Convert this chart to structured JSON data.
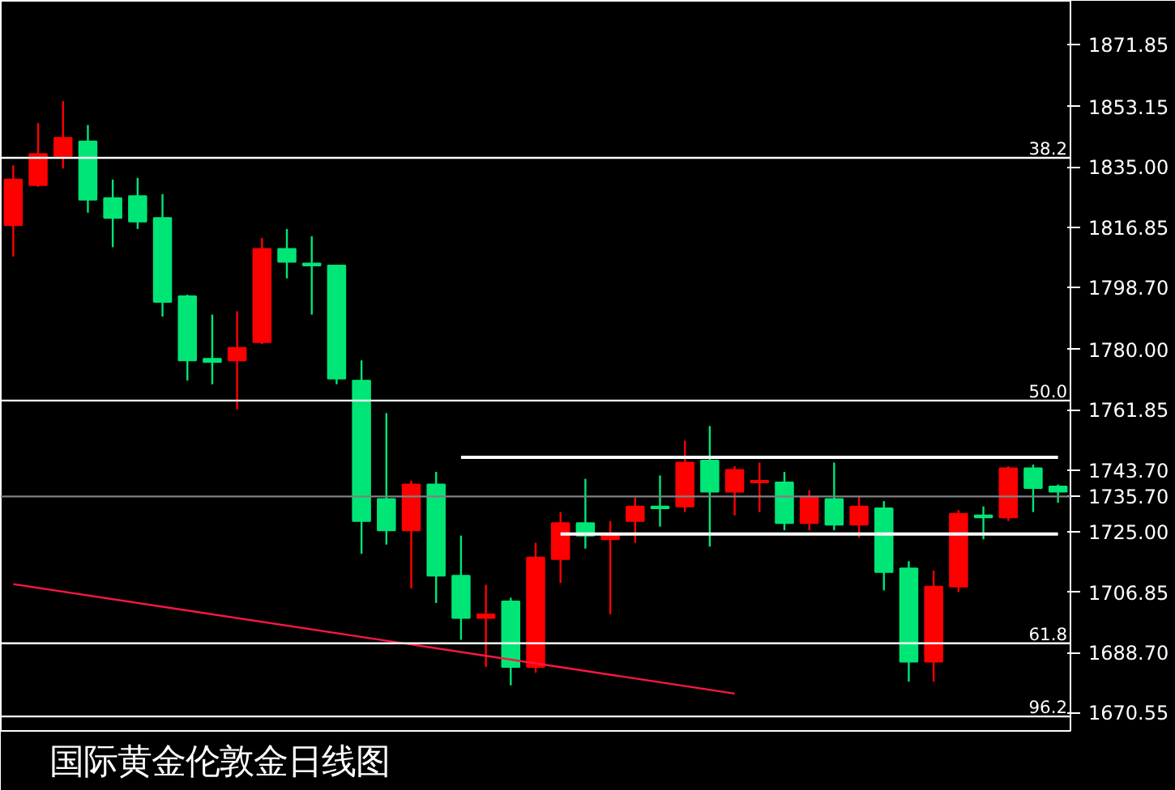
{
  "chart_data": {
    "type": "candlestick",
    "title": "国际黄金伦敦金日线图",
    "categories": [
      null,
      null,
      null,
      null,
      null,
      null,
      null,
      null,
      null,
      null,
      null,
      null,
      null,
      null,
      null,
      null,
      null,
      null,
      null,
      null,
      null,
      null,
      null,
      null,
      null,
      null,
      null,
      null,
      null,
      null,
      null,
      null,
      null,
      null,
      null,
      null,
      null,
      null,
      null,
      null,
      null,
      null,
      null
    ],
    "ohlc": [
      [
        1817.4,
        1835.5,
        1808.0,
        1831.2
      ],
      [
        1829.5,
        1848.2,
        1829.0,
        1838.9
      ],
      [
        1838.3,
        1854.8,
        1834.5,
        1843.8
      ],
      [
        1842.7,
        1847.6,
        1821.2,
        1825.1
      ],
      [
        1825.6,
        1831.2,
        1810.8,
        1819.6
      ],
      [
        1826.2,
        1831.7,
        1816.3,
        1818.5
      ],
      [
        1819.6,
        1826.8,
        1789.9,
        1794.3
      ],
      [
        1796.0,
        1796.5,
        1770.6,
        1776.7
      ],
      [
        1777.2,
        1790.5,
        1769.5,
        1776.2
      ],
      [
        1776.7,
        1791.5,
        1761.9,
        1780.5
      ],
      [
        1782.2,
        1813.6,
        1781.6,
        1810.3
      ],
      [
        1810.3,
        1816.3,
        1801.4,
        1806.4
      ],
      [
        1805.9,
        1814.1,
        1790.5,
        1805.3
      ],
      [
        1805.3,
        1805.3,
        1769.5,
        1771.2
      ],
      [
        1770.6,
        1776.7,
        1718.4,
        1728.3
      ],
      [
        1734.9,
        1760.8,
        1721.2,
        1725.5
      ],
      [
        1725.5,
        1740.4,
        1708.0,
        1739.3
      ],
      [
        1739.3,
        1743.1,
        1703.6,
        1711.8
      ],
      [
        1711.8,
        1723.9,
        1692.5,
        1699.1
      ],
      [
        1699.1,
        1709.1,
        1684.3,
        1700.2
      ],
      [
        1704.1,
        1705.2,
        1678.8,
        1684.3
      ],
      [
        1684.3,
        1721.7,
        1682.6,
        1717.3
      ],
      [
        1716.8,
        1731.0,
        1709.6,
        1727.7
      ],
      [
        1727.7,
        1741.0,
        1720.0,
        1723.9
      ],
      [
        1722.8,
        1728.3,
        1700.2,
        1723.9
      ],
      [
        1728.3,
        1735.4,
        1721.7,
        1732.7
      ],
      [
        1732.7,
        1742.0,
        1726.6,
        1732.1
      ],
      [
        1732.7,
        1752.5,
        1731.0,
        1745.9
      ],
      [
        1746.5,
        1756.9,
        1720.6,
        1737.1
      ],
      [
        1737.1,
        1744.8,
        1730.0,
        1743.7
      ],
      [
        1739.9,
        1745.9,
        1731.0,
        1740.4
      ],
      [
        1739.9,
        1743.1,
        1725.5,
        1727.7
      ],
      [
        1727.7,
        1737.6,
        1725.5,
        1735.4
      ],
      [
        1734.9,
        1745.9,
        1725.5,
        1727.2
      ],
      [
        1727.2,
        1736.0,
        1723.3,
        1732.7
      ],
      [
        1732.1,
        1734.3,
        1707.4,
        1712.9
      ],
      [
        1714.0,
        1716.2,
        1679.9,
        1685.9
      ],
      [
        1685.9,
        1713.4,
        1679.9,
        1708.5
      ],
      [
        1708.5,
        1731.6,
        1706.9,
        1730.5
      ],
      [
        1730.0,
        1732.7,
        1722.8,
        1729.4
      ],
      [
        1729.4,
        1744.8,
        1728.3,
        1744.2
      ],
      [
        1744.2,
        1745.3,
        1731.0,
        1738.2
      ],
      [
        1738.7,
        1739.3,
        1733.8,
        1737.1
      ]
    ],
    "colors": [
      "#ff0000",
      "#ff0000",
      "#ff0000",
      "#00e676",
      "#00e676",
      "#00e676",
      "#00e676",
      "#00e676",
      "#00e676",
      "#ff0000",
      "#ff0000",
      "#00e676",
      "#00e676",
      "#00e676",
      "#00e676",
      "#00e676",
      "#ff0000",
      "#00e676",
      "#00e676",
      "#ff0000",
      "#00e676",
      "#ff0000",
      "#ff0000",
      "#00e676",
      "#ff0000",
      "#ff0000",
      "#00e676",
      "#ff0000",
      "#00e676",
      "#ff0000",
      "#ff0000",
      "#00e676",
      "#ff0000",
      "#00e676",
      "#ff0000",
      "#00e676",
      "#00e676",
      "#ff0000",
      "#ff0000",
      "#00e676",
      "#ff0000",
      "#00e676",
      "#00e676"
    ],
    "series": [
      {
        "type": "line",
        "color": "#ff1744",
        "values": [
          1709.3,
          null,
          null,
          null,
          null,
          null,
          null,
          null,
          null,
          null,
          null,
          null,
          null,
          null,
          null,
          null,
          null,
          null,
          null,
          null,
          null,
          null,
          null,
          null,
          null,
          null,
          null,
          null,
          null,
          1676.3,
          null,
          null,
          null,
          null,
          null,
          null,
          null,
          null,
          null,
          null,
          null,
          null,
          null
        ]
      },
      {
        "type": "line",
        "color": "#ffffff",
        "values": [
          null,
          null,
          null,
          null,
          null,
          null,
          null,
          null,
          null,
          null,
          null,
          null,
          null,
          null,
          null,
          null,
          null,
          null,
          1747.5,
          null,
          null,
          null,
          null,
          null,
          null,
          null,
          null,
          null,
          null,
          null,
          null,
          null,
          null,
          null,
          null,
          null,
          null,
          null,
          null,
          null,
          null,
          null,
          1747.5
        ]
      },
      {
        "type": "line",
        "color": "#ffffff",
        "values": [
          null,
          null,
          null,
          null,
          null,
          null,
          null,
          null,
          null,
          null,
          null,
          null,
          null,
          null,
          null,
          null,
          null,
          null,
          null,
          null,
          null,
          null,
          1724.4,
          null,
          null,
          null,
          null,
          null,
          null,
          null,
          null,
          null,
          null,
          null,
          null,
          null,
          null,
          null,
          null,
          null,
          null,
          null,
          1724.4
        ]
      }
    ],
    "ref_lines": [
      {
        "axis": "y",
        "value": 1837.75,
        "color": "#ffffff"
      },
      {
        "axis": "y",
        "value": 1764.6,
        "color": "#ffffff"
      },
      {
        "axis": "y",
        "value": 1691.45,
        "color": "#ffffff"
      },
      {
        "axis": "y",
        "value": 1669.4,
        "color": "#ffffff"
      },
      {
        "axis": "y",
        "value": 1735.7,
        "color": "#808080",
        "label": "1735.70"
      }
    ],
    "annotations": [
      {
        "text": "38.2",
        "y": 1837.75
      },
      {
        "text": "50.0",
        "y": 1764.6
      },
      {
        "text": "61.8",
        "y": 1691.45
      },
      {
        "text": "96.2",
        "y": 1669.4
      }
    ],
    "ylim": [
      1665.05,
      1885.05
    ],
    "yticks": [
      {
        "value": 1871.85,
        "label": "1871.85"
      },
      {
        "value": 1853.15,
        "label": "1853.15"
      },
      {
        "value": 1835.0,
        "label": "1835.00"
      },
      {
        "value": 1816.85,
        "label": "1816.85"
      },
      {
        "value": 1798.7,
        "label": "1798.70"
      },
      {
        "value": 1780.0,
        "label": "1780.00"
      },
      {
        "value": 1761.85,
        "label": "1761.85"
      },
      {
        "value": 1743.7,
        "label": "1743.70"
      },
      {
        "value": 1725.0,
        "label": "1725.00"
      },
      {
        "value": 1706.85,
        "label": "1706.85"
      },
      {
        "value": 1688.7,
        "label": "1688.70"
      },
      {
        "value": 1670.55,
        "label": "1670.55"
      }
    ],
    "tick_labels": "y",
    "grid": false
  }
}
